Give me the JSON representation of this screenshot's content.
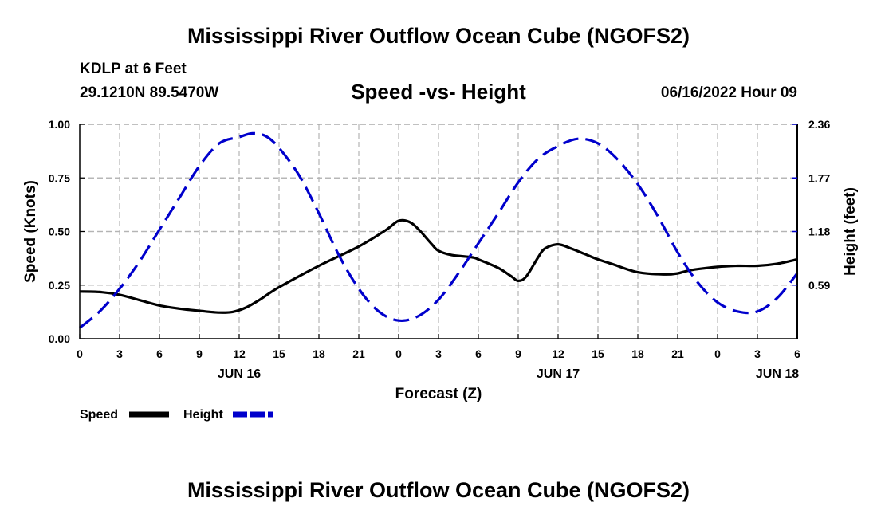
{
  "header": {
    "title": "Mississippi River Outflow Ocean Cube (NGOFS2)",
    "station": "KDLP at 6 Feet",
    "coords": "29.1210N  89.5470W",
    "subtitle": "Speed -vs- Height",
    "run_time": "06/16/2022 Hour 09"
  },
  "footer": {
    "title": "Mississippi River Outflow Ocean Cube (NGOFS2)"
  },
  "chart_data": {
    "type": "line",
    "title": "Speed -vs- Height",
    "xlabel": "Forecast (Z)",
    "ylabel": "Speed (Knots)",
    "y2label": "Height (feet)",
    "grid": true,
    "x_range": [
      0,
      54
    ],
    "ylim": [
      0,
      1.0
    ],
    "y2lim": [
      0,
      2.36
    ],
    "x_ticks": [
      0,
      3,
      6,
      9,
      12,
      15,
      18,
      21,
      24,
      27,
      30,
      33,
      36,
      39,
      42,
      45,
      48,
      51,
      54
    ],
    "x_tick_labels": [
      "0",
      "3",
      "6",
      "9",
      "12",
      "15",
      "18",
      "21",
      "0",
      "3",
      "6",
      "9",
      "12",
      "15",
      "18",
      "21",
      "0",
      "3",
      "6"
    ],
    "date_labels": [
      {
        "x": 12,
        "label": "JUN 16"
      },
      {
        "x": 36,
        "label": "JUN 17"
      },
      {
        "x": 52.5,
        "label": "JUN 18"
      }
    ],
    "y_ticks": [
      0,
      0.25,
      0.5,
      0.75,
      1.0
    ],
    "y_tick_labels": [
      "0.00",
      "0.25",
      "0.50",
      "0.75",
      "1.00"
    ],
    "y2_ticks": [
      0.59,
      1.18,
      1.77,
      2.36
    ],
    "y2_tick_labels": [
      "0.59",
      "1.18",
      "1.77",
      "2.36"
    ],
    "legend": {
      "placement": "bottom-left",
      "speed_label": "Speed",
      "height_label": "Height"
    },
    "series": [
      {
        "name": "Speed",
        "axis": "left",
        "color": "#000000",
        "style": "solid",
        "x": [
          0,
          1.5,
          3,
          4.5,
          6,
          7.5,
          9,
          10.5,
          11.5,
          12.5,
          13.5,
          15,
          18,
          21,
          23,
          24,
          24.8,
          25.5,
          26.5,
          27,
          28,
          29.5,
          30,
          31.5,
          32.5,
          33,
          33.6,
          34.5,
          35,
          36,
          37,
          38,
          39,
          40,
          42,
          44,
          45,
          46,
          48,
          49.5,
          51,
          52.5,
          54
        ],
        "values": [
          0.22,
          0.218,
          0.205,
          0.18,
          0.155,
          0.14,
          0.13,
          0.122,
          0.125,
          0.145,
          0.18,
          0.24,
          0.34,
          0.43,
          0.505,
          0.55,
          0.545,
          0.51,
          0.44,
          0.41,
          0.39,
          0.38,
          0.37,
          0.33,
          0.29,
          0.27,
          0.29,
          0.38,
          0.42,
          0.44,
          0.42,
          0.395,
          0.37,
          0.35,
          0.31,
          0.3,
          0.305,
          0.32,
          0.335,
          0.34,
          0.34,
          0.35,
          0.37
        ]
      },
      {
        "name": "Height",
        "axis": "right",
        "color": "#0000cc",
        "style": "dashed",
        "x": [
          0,
          1.5,
          3,
          4.5,
          6,
          7.5,
          9,
          10.5,
          12,
          13,
          14,
          15,
          16.5,
          18,
          19.5,
          21,
          22.5,
          24,
          25.5,
          27,
          28.5,
          30,
          31.5,
          33,
          34.5,
          36,
          37.5,
          39,
          40.5,
          42,
          43.5,
          45,
          46.5,
          48,
          49.5,
          51,
          52.5,
          54
        ],
        "values": [
          0.12,
          0.3,
          0.55,
          0.85,
          1.2,
          1.55,
          1.9,
          2.15,
          2.22,
          2.26,
          2.23,
          2.1,
          1.8,
          1.38,
          0.92,
          0.55,
          0.3,
          0.2,
          0.25,
          0.43,
          0.72,
          1.05,
          1.38,
          1.72,
          1.98,
          2.12,
          2.2,
          2.15,
          1.97,
          1.7,
          1.35,
          0.95,
          0.62,
          0.4,
          0.3,
          0.3,
          0.45,
          0.72
        ]
      }
    ]
  }
}
